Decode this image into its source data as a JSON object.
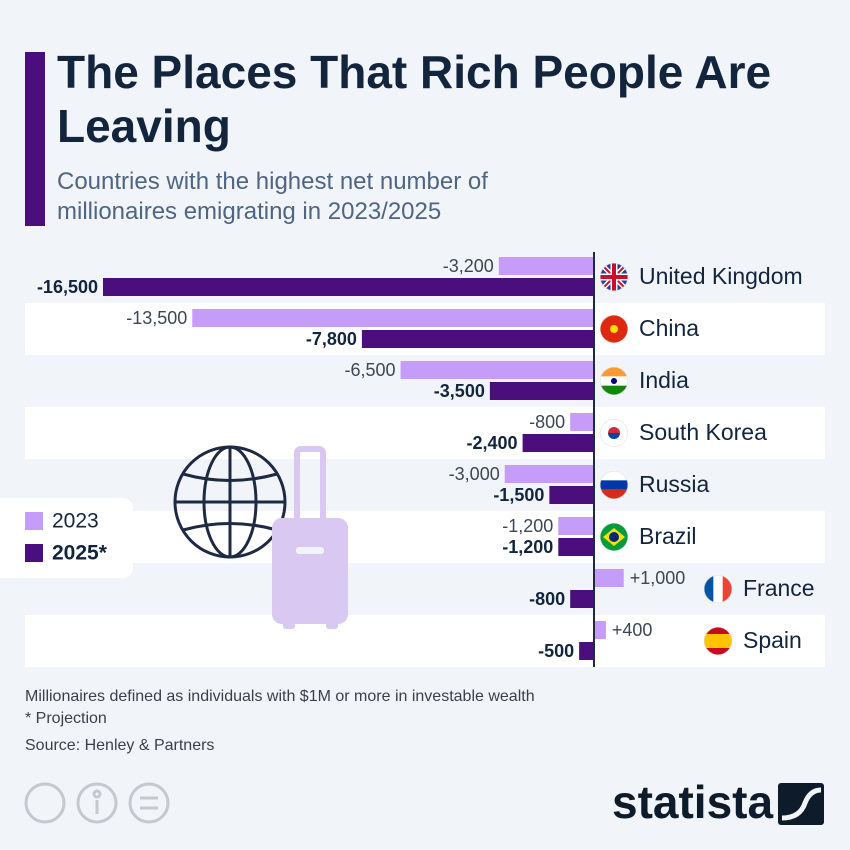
{
  "chart_data": {
    "type": "bar",
    "orientation": "horizontal",
    "title": "The Places That Rich People Are Leaving",
    "subtitle": "Countries with the highest net number of millionaires emigrating in 2023/2025",
    "categories": [
      "United Kingdom",
      "China",
      "India",
      "South Korea",
      "Russia",
      "Brazil",
      "France",
      "Spain"
    ],
    "series": [
      {
        "name": "2023",
        "color": "#c59cf7",
        "values": [
          -3200,
          -13500,
          -6500,
          -800,
          -3000,
          -1200,
          1000,
          400
        ],
        "value_labels": [
          "-3,200",
          "-13,500",
          "-6,500",
          "-800",
          "-3,000",
          "-1,200",
          "+1,000",
          "+400"
        ]
      },
      {
        "name": "2025*",
        "color": "#4b0f7d",
        "values": [
          -16500,
          -7800,
          -3500,
          -2400,
          -1500,
          -1200,
          -800,
          -500
        ],
        "value_labels": [
          "-16,500",
          "-7,800",
          "-3,500",
          "-2,400",
          "-1,500",
          "-1,200",
          "-800",
          "-500"
        ]
      }
    ]
  },
  "footer": {
    "notes": [
      "Millionaires defined as individuals with $1M or more in investable wealth",
      "* Projection"
    ],
    "source": "Source: Henley & Partners",
    "brand": "statista"
  }
}
